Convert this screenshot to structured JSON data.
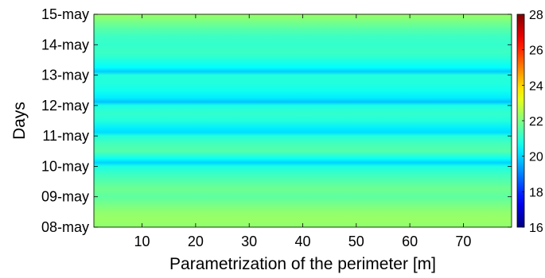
{
  "chart_data": {
    "type": "heatmap",
    "xlabel": "Parametrization of the perimeter [m]",
    "ylabel": "Days",
    "x_ticks": [
      10,
      20,
      30,
      40,
      50,
      60,
      70
    ],
    "xlim": [
      1,
      79
    ],
    "y_ticks": [
      "08-may",
      "09-may",
      "10-may",
      "11-may",
      "12-may",
      "13-may",
      "14-may",
      "15-may"
    ],
    "colorbar": {
      "ticks": [
        16,
        18,
        20,
        22,
        24,
        26,
        28
      ],
      "range": [
        16,
        28
      ],
      "colormap": "jet"
    },
    "profile_note": "Value varies with time only; constant along the perimeter.",
    "profile": [
      {
        "day": 0.0,
        "value": 22.2
      },
      {
        "day": 0.25,
        "value": 22.3
      },
      {
        "day": 0.5,
        "value": 22.2
      },
      {
        "day": 0.75,
        "value": 21.9
      },
      {
        "day": 1.0,
        "value": 21.6
      },
      {
        "day": 1.25,
        "value": 21.8
      },
      {
        "day": 1.5,
        "value": 21.5
      },
      {
        "day": 1.75,
        "value": 21.2
      },
      {
        "day": 2.0,
        "value": 20.8
      },
      {
        "day": 2.12,
        "value": 20.0
      },
      {
        "day": 2.25,
        "value": 20.6
      },
      {
        "day": 2.5,
        "value": 21.5
      },
      {
        "day": 2.75,
        "value": 21.3
      },
      {
        "day": 3.0,
        "value": 20.9
      },
      {
        "day": 3.12,
        "value": 20.1
      },
      {
        "day": 3.25,
        "value": 20.3
      },
      {
        "day": 3.5,
        "value": 20.9
      },
      {
        "day": 3.75,
        "value": 21.1
      },
      {
        "day": 4.0,
        "value": 20.8
      },
      {
        "day": 4.12,
        "value": 19.8
      },
      {
        "day": 4.25,
        "value": 20.3
      },
      {
        "day": 4.5,
        "value": 20.7
      },
      {
        "day": 4.75,
        "value": 20.9
      },
      {
        "day": 5.0,
        "value": 20.9
      },
      {
        "day": 5.12,
        "value": 19.9
      },
      {
        "day": 5.25,
        "value": 20.5
      },
      {
        "day": 5.5,
        "value": 20.9
      },
      {
        "day": 5.75,
        "value": 21.2
      },
      {
        "day": 6.0,
        "value": 21.1
      },
      {
        "day": 6.25,
        "value": 21.2
      },
      {
        "day": 6.5,
        "value": 21.5
      },
      {
        "day": 6.75,
        "value": 21.9
      },
      {
        "day": 7.0,
        "value": 22.3
      }
    ]
  }
}
